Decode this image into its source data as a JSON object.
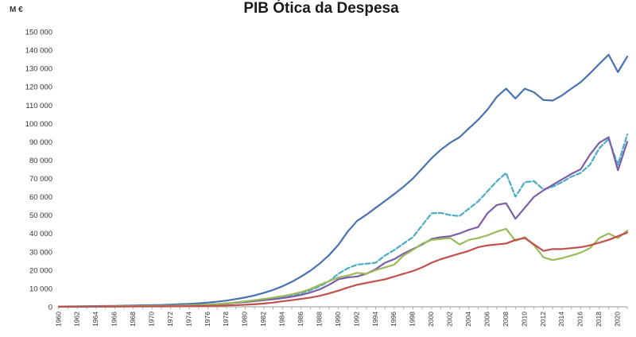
{
  "chart_data": {
    "type": "line",
    "title": "PIB Ótica da Despesa",
    "unit_label": "M €",
    "xlabel": "",
    "ylabel": "",
    "ylim": [
      0,
      150000
    ],
    "y_ticks": [
      0,
      10000,
      20000,
      30000,
      40000,
      50000,
      60000,
      70000,
      80000,
      90000,
      100000,
      110000,
      120000,
      130000,
      140000,
      150000
    ],
    "y_tick_labels": [
      "0",
      "10 000",
      "20 000",
      "30 000",
      "40 000",
      "50 000",
      "60 000",
      "70 000",
      "80 000",
      "90 000",
      "100 000",
      "110 000",
      "120 000",
      "130 000",
      "140 000",
      "150 000"
    ],
    "x_tick_labels": [
      "1960",
      "1962",
      "1964",
      "1966",
      "1968",
      "1970",
      "1972",
      "1974",
      "1976",
      "1978",
      "1980",
      "1982",
      "1984",
      "1986",
      "1988",
      "1990",
      "1992",
      "1994",
      "1996",
      "1998",
      "2000",
      "2002",
      "2004",
      "2006",
      "2008",
      "2010",
      "2012",
      "2014",
      "2016",
      "2018",
      "2020"
    ],
    "legend": "none",
    "grid": false,
    "x": [
      1960,
      1961,
      1962,
      1963,
      1964,
      1965,
      1966,
      1967,
      1968,
      1969,
      1970,
      1971,
      1972,
      1973,
      1974,
      1975,
      1976,
      1977,
      1978,
      1979,
      1980,
      1981,
      1982,
      1983,
      1984,
      1985,
      1986,
      1987,
      1988,
      1989,
      1990,
      1991,
      1992,
      1993,
      1994,
      1995,
      1996,
      1997,
      1998,
      1999,
      2000,
      2001,
      2002,
      2003,
      2004,
      2005,
      2006,
      2007,
      2008,
      2009,
      2010,
      2011,
      2012,
      2013,
      2014,
      2015,
      2016,
      2017,
      2018,
      2019,
      2020,
      2021
    ],
    "series": [
      {
        "color": "#4a72b0",
        "dashed": false,
        "values": [
          200,
          250,
          300,
          350,
          400,
          450,
          500,
          600,
          700,
          800,
          900,
          1000,
          1200,
          1400,
          1600,
          1900,
          2300,
          2800,
          3400,
          4200,
          5100,
          6200,
          7600,
          9200,
          11200,
          13600,
          16500,
          19700,
          23600,
          28200,
          33800,
          41000,
          46800,
          50200,
          54000,
          57700,
          61500,
          65500,
          70000,
          75500,
          81000,
          85700,
          89500,
          92500,
          97300,
          102000,
          107500,
          114500,
          119000,
          113600,
          119000,
          117000,
          112800,
          112500,
          115300,
          119000,
          122500,
          127300,
          132500,
          137500,
          128000,
          136500
        ]
      },
      {
        "color": "#4bacc6",
        "dashed": true,
        "values": [
          100,
          120,
          150,
          180,
          200,
          230,
          260,
          300,
          350,
          400,
          450,
          500,
          600,
          700,
          850,
          1000,
          1200,
          1500,
          1900,
          2300,
          2800,
          3300,
          3900,
          4600,
          5300,
          6300,
          7500,
          9000,
          11200,
          14000,
          18000,
          21000,
          23000,
          23500,
          24000,
          28000,
          31000,
          34500,
          38000,
          44500,
          51000,
          51200,
          50000,
          49500,
          53500,
          57500,
          63000,
          68500,
          73000,
          60000,
          68000,
          68500,
          64000,
          65500,
          68000,
          71000,
          73000,
          77500,
          86500,
          91500,
          77500,
          94000
        ]
      },
      {
        "color": "#7b5ea7",
        "dashed": false,
        "values": [
          100,
          120,
          150,
          180,
          200,
          230,
          260,
          300,
          350,
          400,
          450,
          500,
          600,
          700,
          850,
          1000,
          1200,
          1500,
          1800,
          2200,
          2600,
          3100,
          3600,
          4100,
          4700,
          5500,
          6500,
          7800,
          9500,
          12000,
          15000,
          16000,
          16500,
          18000,
          20500,
          24000,
          26000,
          29000,
          31500,
          34000,
          37000,
          38000,
          38500,
          40000,
          42000,
          43500,
          51000,
          55500,
          56500,
          48000,
          54000,
          60000,
          63500,
          66500,
          69500,
          72500,
          75000,
          83000,
          89500,
          92500,
          74500,
          90000
        ]
      },
      {
        "color": "#9bbb59",
        "dashed": false,
        "values": [
          100,
          120,
          150,
          180,
          200,
          230,
          260,
          300,
          350,
          400,
          450,
          500,
          600,
          700,
          850,
          1000,
          1200,
          1500,
          1900,
          2400,
          3000,
          3600,
          4300,
          5000,
          5800,
          6800,
          8000,
          9700,
          12000,
          14000,
          16000,
          17000,
          18500,
          18000,
          20000,
          21500,
          23000,
          28000,
          31000,
          34500,
          36500,
          37000,
          37500,
          34000,
          36500,
          37500,
          39000,
          41000,
          42500,
          36000,
          38000,
          33500,
          27000,
          25500,
          26500,
          28000,
          29500,
          32000,
          37500,
          40000,
          37500,
          41500
        ]
      },
      {
        "color": "#c0504d",
        "dashed": false,
        "values": [
          50,
          60,
          70,
          80,
          90,
          100,
          120,
          140,
          160,
          180,
          200,
          230,
          260,
          300,
          350,
          420,
          500,
          600,
          750,
          900,
          1100,
          1400,
          1800,
          2300,
          3000,
          3600,
          4300,
          5000,
          6000,
          7300,
          8800,
          10500,
          12000,
          13000,
          14000,
          15000,
          16500,
          18000,
          19500,
          21500,
          24000,
          26000,
          27500,
          29000,
          30500,
          32500,
          33500,
          34000,
          34500,
          36500,
          37500,
          34000,
          30500,
          31500,
          31500,
          32000,
          32500,
          33500,
          35000,
          36500,
          38500,
          40500
        ]
      }
    ]
  }
}
